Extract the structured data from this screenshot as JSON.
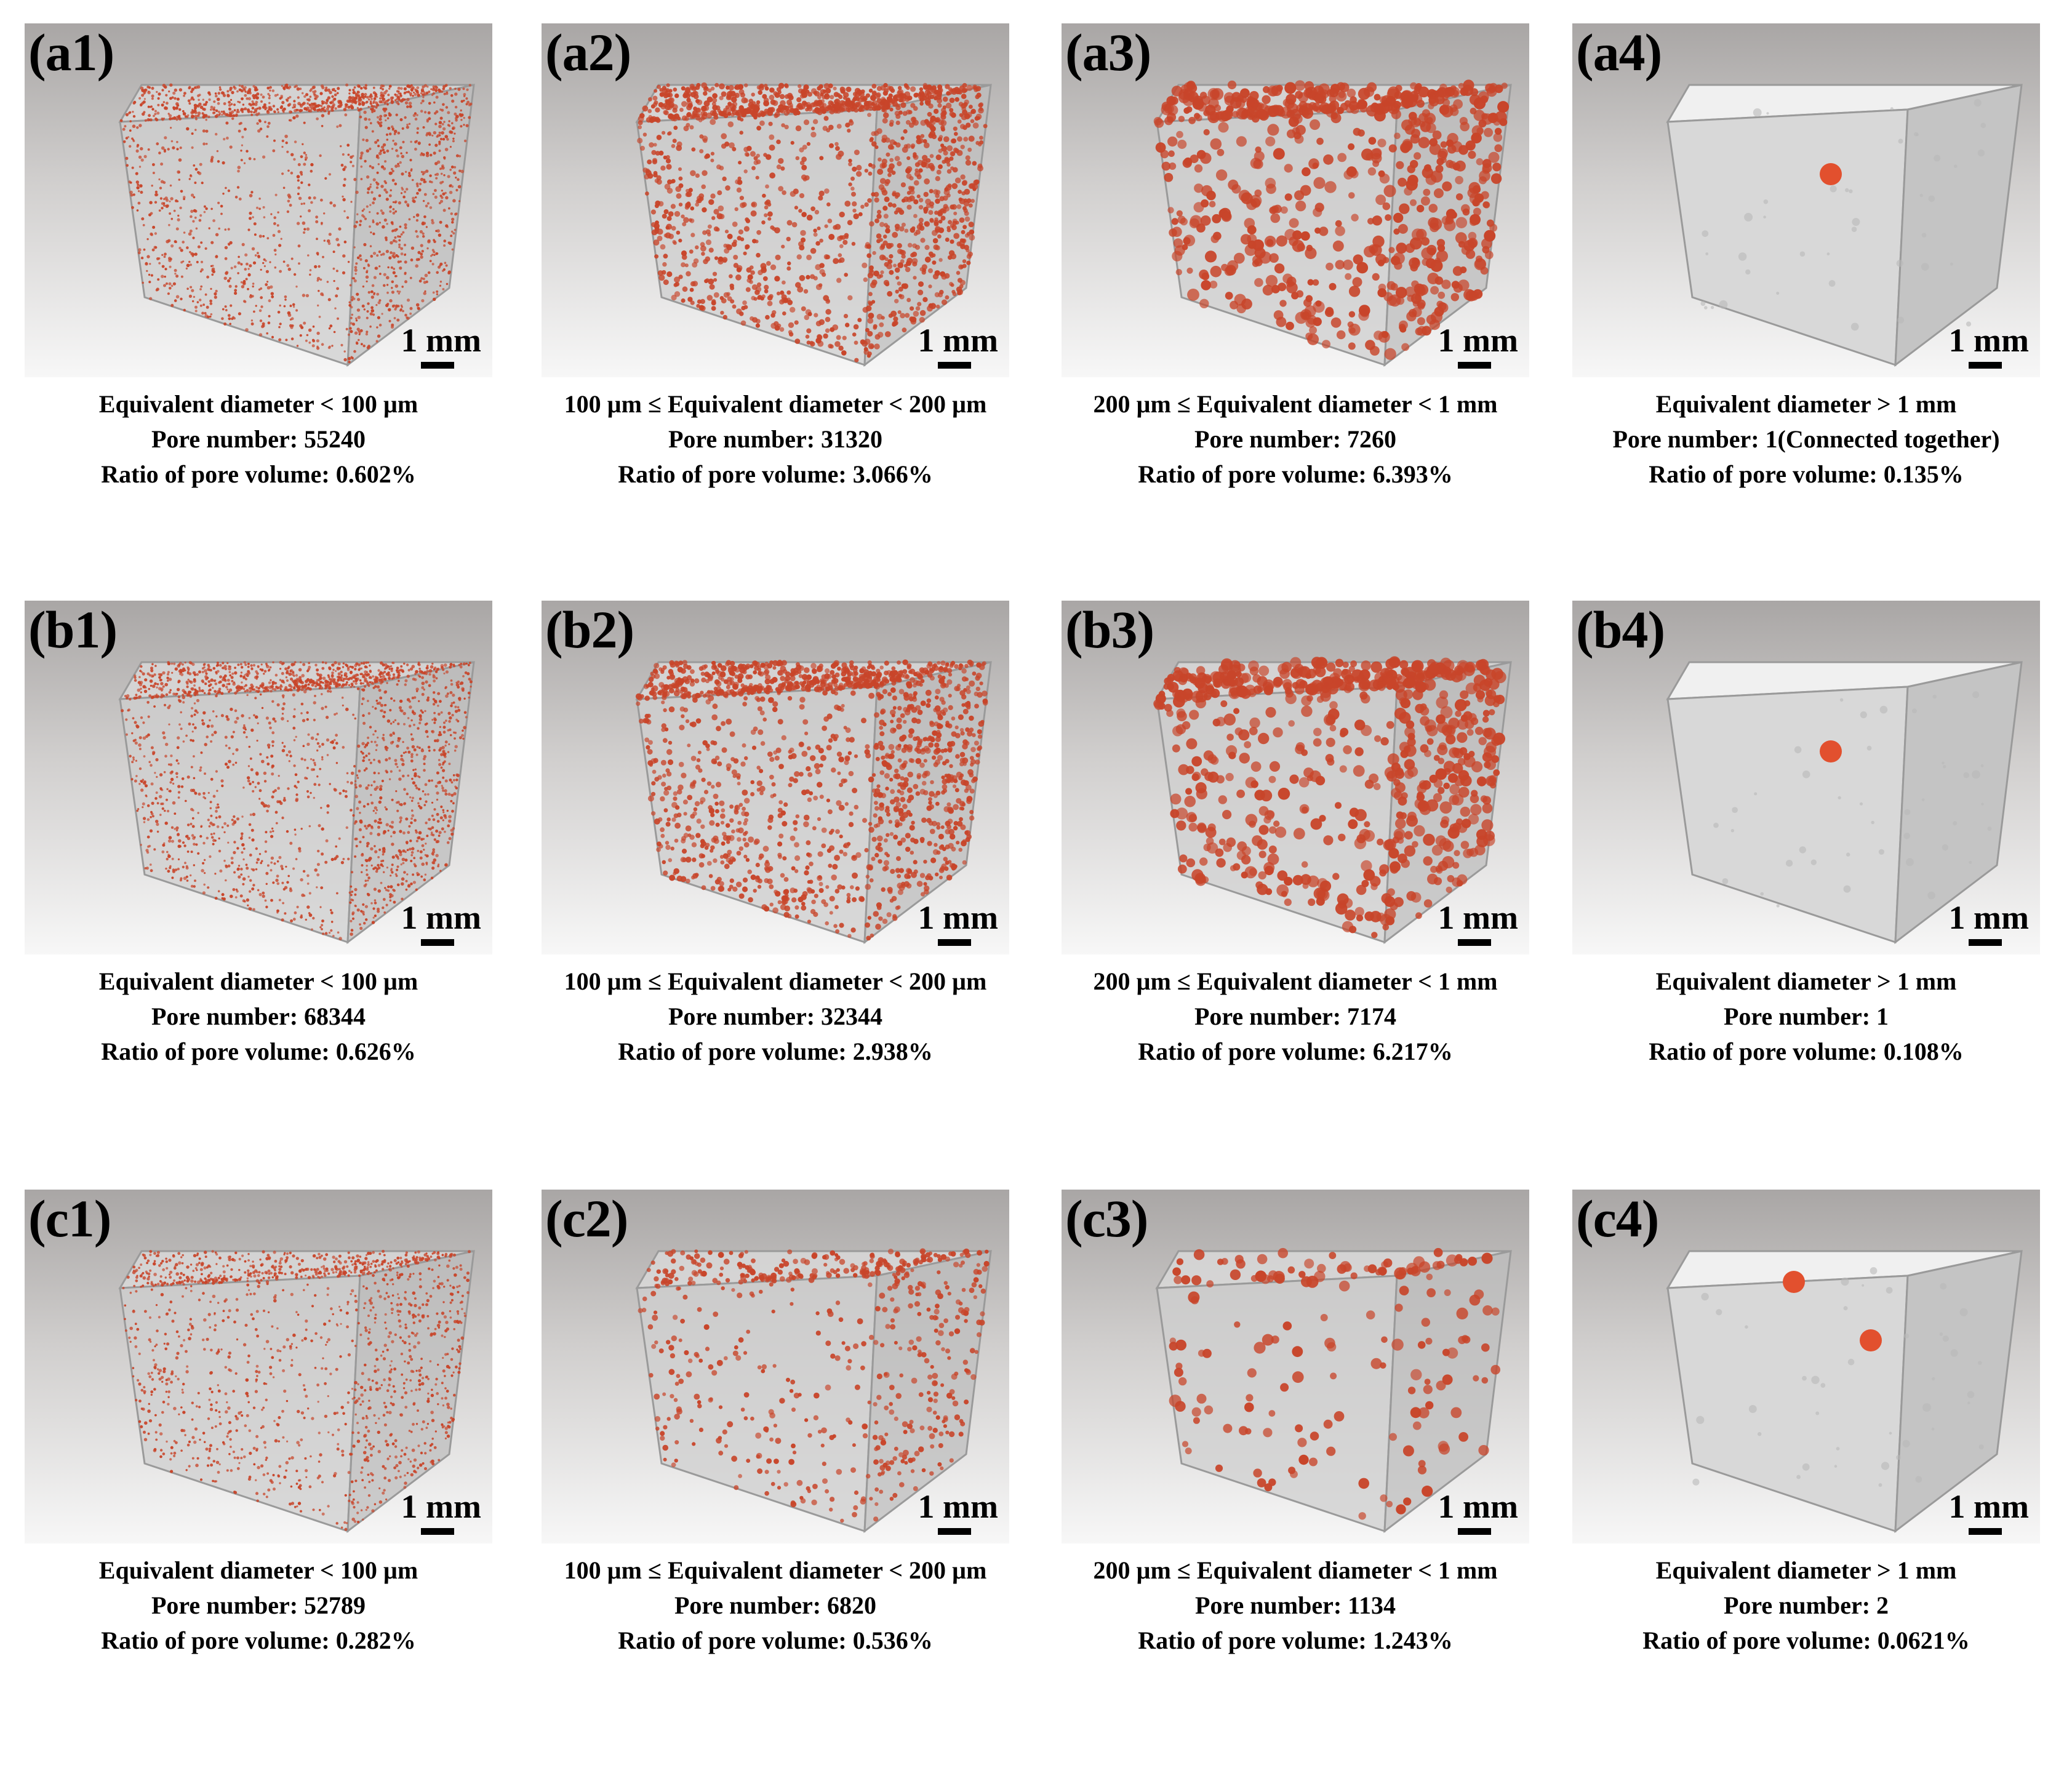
{
  "scale_label": "1 mm",
  "colors": {
    "pore": "#c8452a",
    "cube": "#e2e2e2",
    "background_top": "#a9a6a5"
  },
  "panels": [
    {
      "label": "(a1)",
      "caption": [
        "Equivalent diameter < 100 µm",
        "Pore number: 55240",
        "Ratio of pore volume: 0.602%"
      ],
      "pore_count": 55240,
      "pore_ratio_percent": 0.602,
      "size_class": "fine",
      "visual_density": 0.75
    },
    {
      "label": "(a2)",
      "caption": [
        "100 µm ≤ Equivalent diameter < 200 µm",
        "Pore number: 31320",
        "Ratio of pore volume: 3.066%"
      ],
      "pore_count": 31320,
      "pore_ratio_percent": 3.066,
      "size_class": "medium",
      "visual_density": 0.95
    },
    {
      "label": "(a3)",
      "caption": [
        "200 µm ≤ Equivalent diameter < 1 mm",
        "Pore number: 7260",
        "Ratio of pore volume: 6.393%"
      ],
      "pore_count": 7260,
      "pore_ratio_percent": 6.393,
      "size_class": "large",
      "visual_density": 0.95
    },
    {
      "label": "(a4)",
      "caption": [
        "Equivalent diameter > 1 mm",
        "Pore number: 1(Connected together)",
        "Ratio of pore volume: 0.135%"
      ],
      "pore_count": 1,
      "pore_ratio_percent": 0.135,
      "size_class": "blob",
      "visual_density": 0
    },
    {
      "label": "(b1)",
      "caption": [
        "Equivalent diameter < 100 µm",
        "Pore number: 68344",
        "Ratio of pore volume: 0.626%"
      ],
      "pore_count": 68344,
      "pore_ratio_percent": 0.626,
      "size_class": "fine",
      "visual_density": 0.8
    },
    {
      "label": "(b2)",
      "caption": [
        "100 µm ≤ Equivalent diameter < 200 µm",
        "Pore number: 32344",
        "Ratio of pore volume: 2.938%"
      ],
      "pore_count": 32344,
      "pore_ratio_percent": 2.938,
      "size_class": "medium",
      "visual_density": 0.9
    },
    {
      "label": "(b3)",
      "caption": [
        "200 µm ≤ Equivalent diameter < 1 mm",
        "Pore number: 7174",
        "Ratio of pore volume: 6.217%"
      ],
      "pore_count": 7174,
      "pore_ratio_percent": 6.217,
      "size_class": "large",
      "visual_density": 0.9
    },
    {
      "label": "(b4)",
      "caption": [
        "Equivalent diameter > 1 mm",
        "Pore number: 1",
        "Ratio of pore volume: 0.108%"
      ],
      "pore_count": 1,
      "pore_ratio_percent": 0.108,
      "size_class": "blob",
      "visual_density": 0
    },
    {
      "label": "(c1)",
      "caption": [
        "Equivalent diameter < 100 µm",
        "Pore number: 52789",
        "Ratio of pore volume: 0.282%"
      ],
      "pore_count": 52789,
      "pore_ratio_percent": 0.282,
      "size_class": "fine",
      "visual_density": 0.55
    },
    {
      "label": "(c2)",
      "caption": [
        "100 µm ≤ Equivalent diameter < 200 µm",
        "Pore number: 6820",
        "Ratio of pore volume: 0.536%"
      ],
      "pore_count": 6820,
      "pore_ratio_percent": 0.536,
      "size_class": "medium",
      "visual_density": 0.35
    },
    {
      "label": "(c3)",
      "caption": [
        "200 µm ≤ Equivalent diameter < 1 mm",
        "Pore number: 1134",
        "Ratio of pore volume: 1.243%"
      ],
      "pore_count": 1134,
      "pore_ratio_percent": 1.243,
      "size_class": "large",
      "visual_density": 0.22
    },
    {
      "label": "(c4)",
      "caption": [
        "Equivalent diameter > 1 mm",
        "Pore number: 2",
        "Ratio of pore volume: 0.0621%"
      ],
      "pore_count": 2,
      "pore_ratio_percent": 0.0621,
      "size_class": "blob",
      "visual_density": 0
    }
  ]
}
